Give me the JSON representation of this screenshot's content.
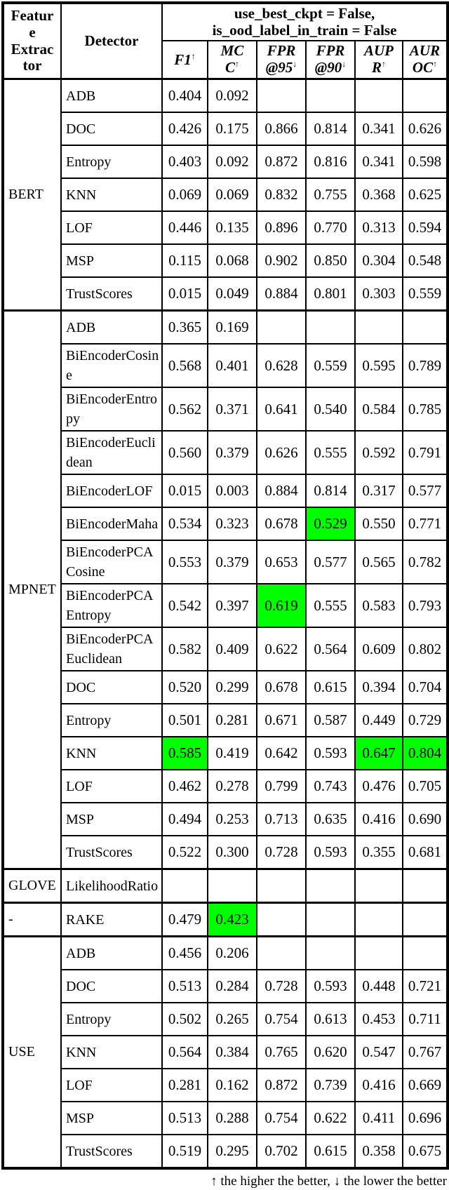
{
  "header": {
    "feature_extractor": {
      "label": "Feature Extractor",
      "display": "Featur\ne\nExtrac\ntor"
    },
    "detector": {
      "label": "Detector"
    },
    "condition": {
      "label": "use_best_ckpt = False,\nis_ood_label_in_train = False"
    },
    "metrics": [
      {
        "label": "F1",
        "display": "F1",
        "arrow": "↑"
      },
      {
        "label": "MCC",
        "display": "MC\nC",
        "arrow": "↑"
      },
      {
        "label": "FPR@95",
        "display": "FPR\n@95",
        "arrow": "↓"
      },
      {
        "label": "FPR@90",
        "display": "FPR\n@90",
        "arrow": "↓"
      },
      {
        "label": "AUPR",
        "display": "AUP\nR",
        "arrow": "↑"
      },
      {
        "label": "AUROC",
        "display": "AUR\nOC",
        "arrow": "↑"
      }
    ]
  },
  "groups": [
    {
      "feature_extractor": "BERT",
      "rows": [
        {
          "detector": "ADB",
          "values": [
            "0.404",
            "0.092",
            "",
            "",
            "",
            ""
          ],
          "highlights": []
        },
        {
          "detector": "DOC",
          "values": [
            "0.426",
            "0.175",
            "0.866",
            "0.814",
            "0.341",
            "0.626"
          ],
          "highlights": []
        },
        {
          "detector": "Entropy",
          "values": [
            "0.403",
            "0.092",
            "0.872",
            "0.816",
            "0.341",
            "0.598"
          ],
          "highlights": []
        },
        {
          "detector": "KNN",
          "values": [
            "0.069",
            "0.069",
            "0.832",
            "0.755",
            "0.368",
            "0.625"
          ],
          "highlights": []
        },
        {
          "detector": "LOF",
          "values": [
            "0.446",
            "0.135",
            "0.896",
            "0.770",
            "0.313",
            "0.594"
          ],
          "highlights": []
        },
        {
          "detector": "MSP",
          "values": [
            "0.115",
            "0.068",
            "0.902",
            "0.850",
            "0.304",
            "0.548"
          ],
          "highlights": []
        },
        {
          "detector": "TrustScores",
          "values": [
            "0.015",
            "0.049",
            "0.884",
            "0.801",
            "0.303",
            "0.559"
          ],
          "highlights": []
        }
      ]
    },
    {
      "feature_extractor": "MPNET",
      "rows": [
        {
          "detector": "ADB",
          "values": [
            "0.365",
            "0.169",
            "",
            "",
            "",
            ""
          ],
          "highlights": []
        },
        {
          "detector": "BiEncoderCosine",
          "values": [
            "0.568",
            "0.401",
            "0.628",
            "0.559",
            "0.595",
            "0.789"
          ],
          "highlights": []
        },
        {
          "detector": "BiEncoderEntropy",
          "values": [
            "0.562",
            "0.371",
            "0.641",
            "0.540",
            "0.584",
            "0.785"
          ],
          "highlights": []
        },
        {
          "detector": "BiEncoderEuclidean",
          "values": [
            "0.560",
            "0.379",
            "0.626",
            "0.555",
            "0.592",
            "0.791"
          ],
          "highlights": []
        },
        {
          "detector": "BiEncoderLOF",
          "values": [
            "0.015",
            "0.003",
            "0.884",
            "0.814",
            "0.317",
            "0.577"
          ],
          "highlights": []
        },
        {
          "detector": "BiEncoderMaha",
          "values": [
            "0.534",
            "0.323",
            "0.678",
            "0.529",
            "0.550",
            "0.771"
          ],
          "highlights": [
            3
          ]
        },
        {
          "detector": "BiEncoderPCACosine",
          "values": [
            "0.553",
            "0.379",
            "0.653",
            "0.577",
            "0.565",
            "0.782"
          ],
          "highlights": []
        },
        {
          "detector": "BiEncoderPCAEntropy",
          "values": [
            "0.542",
            "0.397",
            "0.619",
            "0.555",
            "0.583",
            "0.793"
          ],
          "highlights": [
            2
          ]
        },
        {
          "detector": "BiEncoderPCAEuclidean",
          "values": [
            "0.582",
            "0.409",
            "0.622",
            "0.564",
            "0.609",
            "0.802"
          ],
          "highlights": []
        },
        {
          "detector": "DOC",
          "values": [
            "0.520",
            "0.299",
            "0.678",
            "0.615",
            "0.394",
            "0.704"
          ],
          "highlights": []
        },
        {
          "detector": "Entropy",
          "values": [
            "0.501",
            "0.281",
            "0.671",
            "0.587",
            "0.449",
            "0.729"
          ],
          "highlights": []
        },
        {
          "detector": "KNN",
          "values": [
            "0.585",
            "0.419",
            "0.642",
            "0.593",
            "0.647",
            "0.804"
          ],
          "highlights": [
            0,
            4,
            5
          ]
        },
        {
          "detector": "LOF",
          "values": [
            "0.462",
            "0.278",
            "0.799",
            "0.743",
            "0.476",
            "0.705"
          ],
          "highlights": []
        },
        {
          "detector": "MSP",
          "values": [
            "0.494",
            "0.253",
            "0.713",
            "0.635",
            "0.416",
            "0.690"
          ],
          "highlights": []
        },
        {
          "detector": "TrustScores",
          "values": [
            "0.522",
            "0.300",
            "0.728",
            "0.593",
            "0.355",
            "0.681"
          ],
          "highlights": []
        }
      ]
    },
    {
      "feature_extractor": "GLOVE",
      "rows": [
        {
          "detector": "LikelihoodRatio",
          "values": [
            "",
            "",
            "",
            "",
            "",
            ""
          ],
          "highlights": []
        }
      ]
    },
    {
      "feature_extractor": "-",
      "rows": [
        {
          "detector": "RAKE",
          "values": [
            "0.479",
            "0.423",
            "",
            "",
            "",
            ""
          ],
          "highlights": [
            1
          ]
        }
      ]
    },
    {
      "feature_extractor": "USE",
      "rows": [
        {
          "detector": "ADB",
          "values": [
            "0.456",
            "0.206",
            "",
            "",
            "",
            ""
          ],
          "highlights": []
        },
        {
          "detector": "DOC",
          "values": [
            "0.513",
            "0.284",
            "0.728",
            "0.593",
            "0.448",
            "0.721"
          ],
          "highlights": []
        },
        {
          "detector": "Entropy",
          "values": [
            "0.502",
            "0.265",
            "0.754",
            "0.613",
            "0.453",
            "0.711"
          ],
          "highlights": []
        },
        {
          "detector": "KNN",
          "values": [
            "0.564",
            "0.384",
            "0.765",
            "0.620",
            "0.547",
            "0.767"
          ],
          "highlights": []
        },
        {
          "detector": "LOF",
          "values": [
            "0.281",
            "0.162",
            "0.872",
            "0.739",
            "0.416",
            "0.669"
          ],
          "highlights": []
        },
        {
          "detector": "MSP",
          "values": [
            "0.513",
            "0.288",
            "0.754",
            "0.622",
            "0.411",
            "0.696"
          ],
          "highlights": []
        },
        {
          "detector": "TrustScores",
          "values": [
            "0.519",
            "0.295",
            "0.702",
            "0.615",
            "0.358",
            "0.675"
          ],
          "highlights": []
        }
      ]
    }
  ],
  "footer": {
    "note": "↑ the higher the better, ↓ the lower the better"
  },
  "colors": {
    "highlight": "#00FF00",
    "border": "#000000",
    "background": "#FFFFFF"
  }
}
